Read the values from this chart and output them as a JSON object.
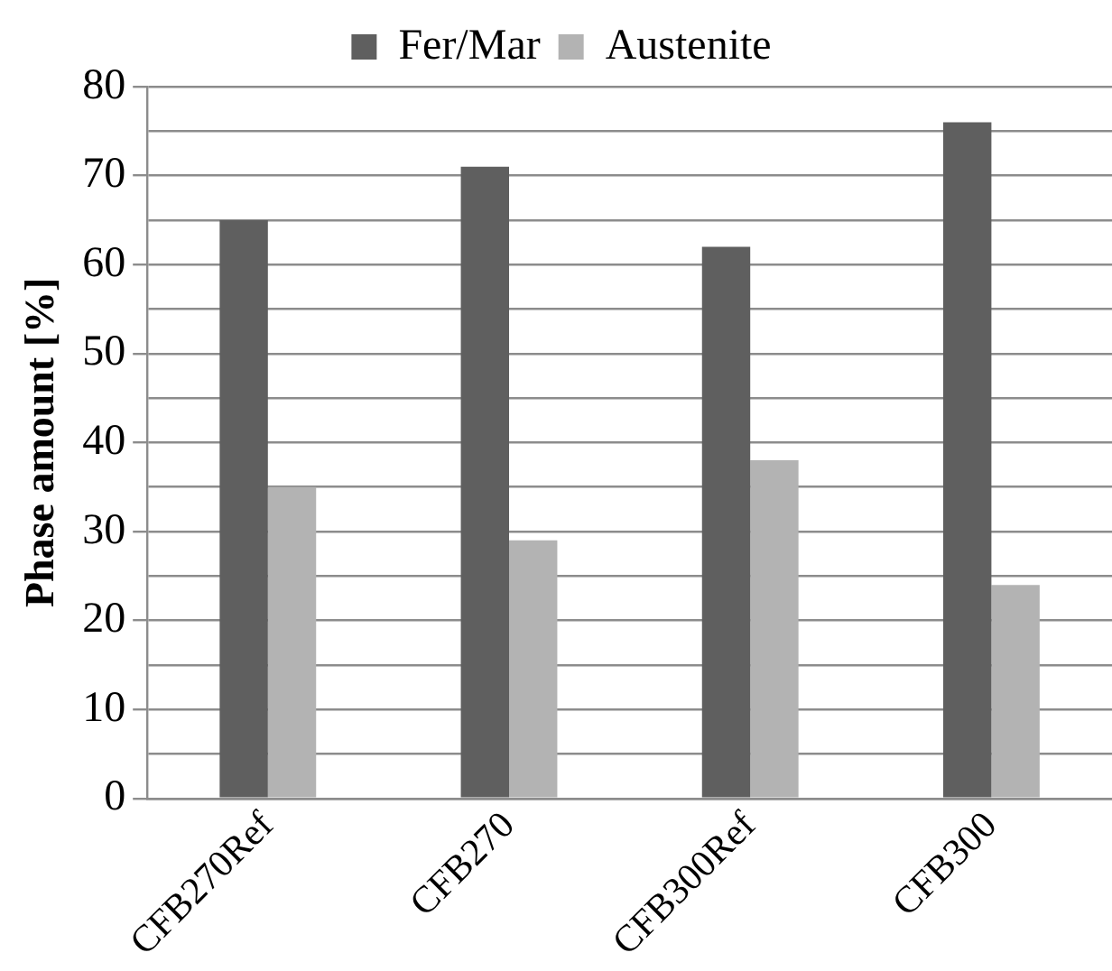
{
  "chart_data": {
    "type": "bar",
    "ylabel": "Phase amount [%]",
    "categories": [
      "CFB270Ref",
      "CFB270",
      "CFB300Ref",
      "CFB300"
    ],
    "series": [
      {
        "name": "Fer/Mar",
        "color": "#5f5f5f",
        "values": [
          65,
          71,
          62,
          76
        ]
      },
      {
        "name": "Austenite",
        "color": "#b3b3b3",
        "values": [
          35,
          29,
          38,
          24
        ]
      }
    ],
    "ylim": [
      0,
      80
    ],
    "yticks": [
      0,
      {
        "value": 5,
        "label": null
      },
      10,
      {
        "value": 15,
        "label": null
      },
      20,
      {
        "value": 25,
        "label": null
      },
      30,
      {
        "value": 35,
        "label": null
      },
      40,
      {
        "value": 45,
        "label": null
      },
      50,
      {
        "value": 55,
        "label": null
      },
      60,
      {
        "value": 65,
        "label": null
      },
      70,
      {
        "value": 75,
        "label": null
      },
      80
    ],
    "grid": true,
    "legend": "top"
  }
}
